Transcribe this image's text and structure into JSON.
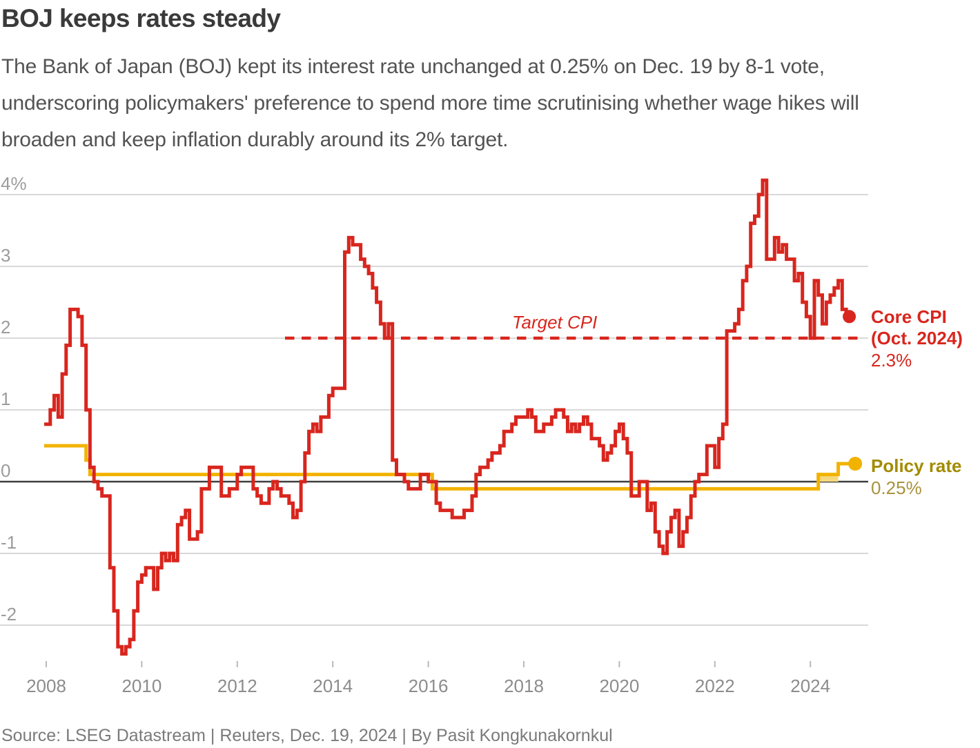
{
  "header": {
    "title": "BOJ keeps rates steady",
    "subtitle": "The Bank of Japan (BOJ) kept its interest rate unchanged at 0.25% on Dec. 19 by 8-1 vote,\nunderscoring policymakers' preference to spend more time scrutinising whether wage hikes will\nbroaden and keep inflation durably around its 2% target."
  },
  "footer": {
    "source": "Source: LSEG Datastream | Reuters, Dec. 19, 2024 | By Pasit Kongkunakornkul"
  },
  "chart_data": {
    "type": "line",
    "subtype": "step",
    "frequency": "monthly",
    "x_range": [
      "2008-01",
      "2025-01"
    ],
    "ylim": [
      -2.6,
      4.3
    ],
    "grid": true,
    "y_ticks": [
      {
        "label": "4%",
        "value": 4
      },
      {
        "label": "3",
        "value": 3
      },
      {
        "label": "2",
        "value": 2
      },
      {
        "label": "1",
        "value": 1
      },
      {
        "label": "0",
        "value": 0
      },
      {
        "label": "-1",
        "value": -1
      },
      {
        "label": "-2",
        "value": -2
      }
    ],
    "x_ticks": [
      "2008",
      "2010",
      "2012",
      "2014",
      "2016",
      "2018",
      "2020",
      "2022",
      "2024"
    ],
    "colors": {
      "cpi": "#d8261e",
      "policy": "#f2b200",
      "policy_band": "#f6d87c",
      "policy_text": "#a28b00",
      "grid": "#d8d8d8",
      "zero_line": "#3d3d3d",
      "tick": "#b9b9b9"
    },
    "annotations": {
      "target": {
        "label": "Target CPI",
        "value": 2,
        "line_start": "2013-01",
        "style": "dashed"
      },
      "core_cpi": {
        "label": "Core CPI\n(Oct. 2024)",
        "value_label": "2.3%",
        "value": 2.3
      },
      "policy": {
        "label": "Policy rate",
        "value_label": "0.25%",
        "value": 0.25
      }
    },
    "series": [
      {
        "name": "Core CPI",
        "unit": "% year-on-year",
        "start": "2008-01",
        "end": "2024-10",
        "values": [
          0.8,
          1.0,
          1.2,
          0.9,
          1.5,
          1.9,
          2.4,
          2.4,
          2.3,
          1.9,
          1.0,
          0.2,
          0.0,
          -0.1,
          -0.2,
          -0.2,
          -1.2,
          -1.8,
          -2.3,
          -2.4,
          -2.3,
          -2.2,
          -1.8,
          -1.4,
          -1.3,
          -1.2,
          -1.2,
          -1.5,
          -1.2,
          -1.0,
          -1.1,
          -1.0,
          -1.1,
          -0.6,
          -0.5,
          -0.4,
          -0.8,
          -0.8,
          -0.7,
          -0.1,
          -0.1,
          0.2,
          0.2,
          0.2,
          -0.2,
          -0.2,
          -0.1,
          -0.1,
          0.1,
          0.2,
          0.2,
          0.2,
          -0.1,
          -0.2,
          -0.3,
          -0.3,
          -0.1,
          0.0,
          -0.1,
          -0.2,
          -0.2,
          -0.3,
          -0.5,
          -0.4,
          0.0,
          0.4,
          0.7,
          0.8,
          0.7,
          0.9,
          0.9,
          1.2,
          1.3,
          1.3,
          1.3,
          3.2,
          3.4,
          3.3,
          3.3,
          3.1,
          3.0,
          2.9,
          2.7,
          2.5,
          2.2,
          2.0,
          2.2,
          0.3,
          0.1,
          0.1,
          0.0,
          -0.1,
          -0.1,
          -0.1,
          0.1,
          0.1,
          0.0,
          0.0,
          -0.3,
          -0.4,
          -0.4,
          -0.4,
          -0.5,
          -0.5,
          -0.5,
          -0.4,
          -0.4,
          -0.2,
          0.1,
          0.2,
          0.2,
          0.3,
          0.4,
          0.4,
          0.5,
          0.7,
          0.7,
          0.8,
          0.9,
          0.9,
          0.9,
          1.0,
          0.9,
          0.7,
          0.7,
          0.8,
          0.8,
          0.9,
          1.0,
          1.0,
          0.9,
          0.7,
          0.8,
          0.7,
          0.8,
          0.9,
          0.8,
          0.6,
          0.6,
          0.5,
          0.3,
          0.4,
          0.5,
          0.7,
          0.8,
          0.6,
          0.4,
          -0.2,
          -0.2,
          0.0,
          0.0,
          -0.4,
          -0.3,
          -0.7,
          -0.9,
          -1.0,
          -0.7,
          -0.5,
          -0.4,
          -0.9,
          -0.7,
          -0.5,
          -0.2,
          0.0,
          0.1,
          0.1,
          0.5,
          0.5,
          0.2,
          0.6,
          0.8,
          2.1,
          2.1,
          2.2,
          2.4,
          2.8,
          3.0,
          3.6,
          3.7,
          4.0,
          4.2,
          3.1,
          3.1,
          3.4,
          3.2,
          3.3,
          3.1,
          3.1,
          2.8,
          2.9,
          2.5,
          2.3,
          2.0,
          2.8,
          2.6,
          2.2,
          2.5,
          2.6,
          2.7,
          2.8,
          2.4,
          2.3
        ]
      },
      {
        "name": "Policy rate",
        "unit": "%",
        "start": "2008-01",
        "end": "2024-12",
        "segments": [
          {
            "start": "2008-01",
            "end": "2008-10",
            "value": 0.5
          },
          {
            "start": "2008-11",
            "end": "2008-11",
            "value": 0.3
          },
          {
            "start": "2008-12",
            "end": "2016-01",
            "value": 0.1
          },
          {
            "start": "2016-02",
            "end": "2024-02",
            "value": -0.1
          },
          {
            "start": "2024-03",
            "end": "2024-07",
            "value": 0.1
          },
          {
            "start": "2024-08",
            "end": "2024-12",
            "value": 0.25
          }
        ],
        "band": {
          "start": "2024-03",
          "end": "2024-08",
          "low": 0,
          "high": 0.1
        }
      }
    ]
  }
}
